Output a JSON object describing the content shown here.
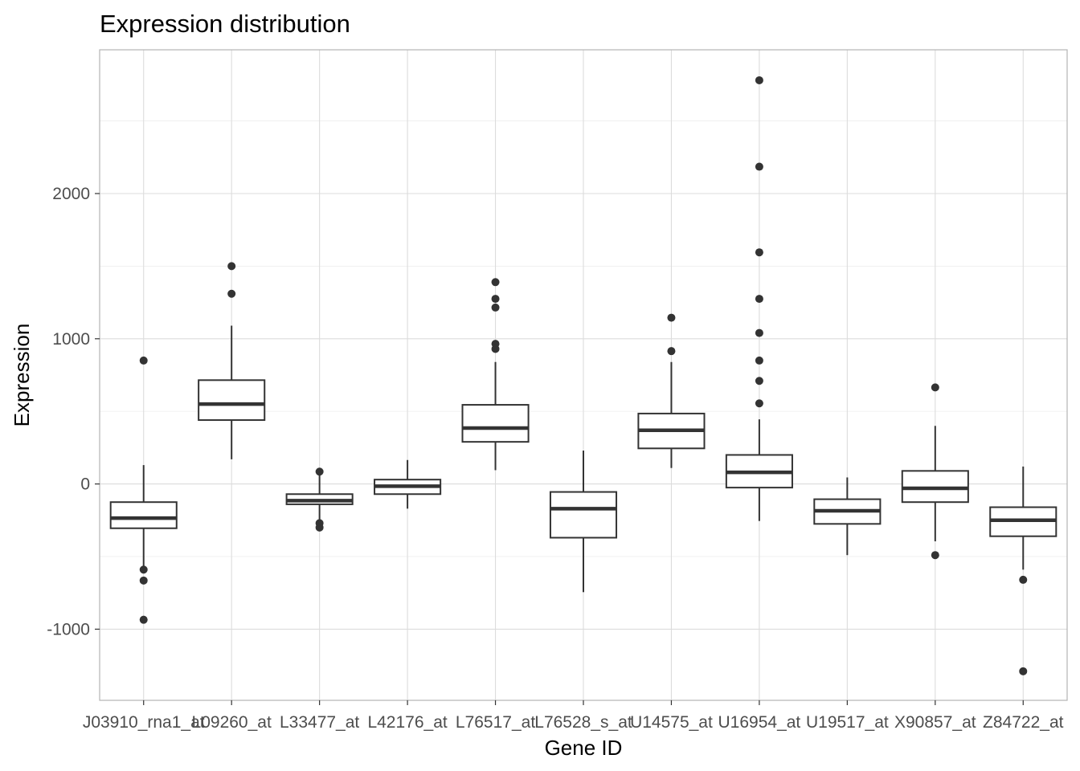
{
  "chart_data": {
    "type": "boxplot",
    "title": "Expression distribution",
    "xlabel": "Gene ID",
    "ylabel": "Expression",
    "ylim": [
      -1490,
      2990
    ],
    "yticks": [
      -1000,
      0,
      1000,
      2000
    ],
    "grid": true,
    "legend": "none",
    "colors": {
      "box_stroke": "#333333",
      "box_fill": "#ffffff",
      "grid": "#dcdcdc",
      "panel_border": "#b3b3b3"
    },
    "categories": [
      "J03910_rna1_at",
      "L09260_at",
      "L33477_at",
      "L42176_at",
      "L76517_at",
      "L76528_s_at",
      "U14575_at",
      "U16954_at",
      "U19517_at",
      "X90857_at",
      "Z84722_at"
    ],
    "boxes": [
      {
        "q1": -305,
        "median": -235,
        "q3": -125,
        "whisker_low": -590,
        "whisker_high": 130,
        "outliers": [
          850,
          -590,
          -665,
          -935
        ]
      },
      {
        "q1": 440,
        "median": 550,
        "q3": 715,
        "whisker_low": 170,
        "whisker_high": 1090,
        "outliers": [
          1500,
          1310
        ]
      },
      {
        "q1": -140,
        "median": -115,
        "q3": -70,
        "whisker_low": -265,
        "whisker_high": 85,
        "outliers": [
          85,
          -270,
          -300
        ]
      },
      {
        "q1": -70,
        "median": -15,
        "q3": 30,
        "whisker_low": -170,
        "whisker_high": 165,
        "outliers": []
      },
      {
        "q1": 290,
        "median": 385,
        "q3": 545,
        "whisker_low": 95,
        "whisker_high": 840,
        "outliers": [
          1390,
          1275,
          1215,
          965,
          930
        ]
      },
      {
        "q1": -370,
        "median": -170,
        "q3": -55,
        "whisker_low": -745,
        "whisker_high": 230,
        "outliers": []
      },
      {
        "q1": 245,
        "median": 370,
        "q3": 485,
        "whisker_low": 110,
        "whisker_high": 840,
        "outliers": [
          1145,
          915
        ]
      },
      {
        "q1": -25,
        "median": 80,
        "q3": 200,
        "whisker_low": -255,
        "whisker_high": 445,
        "outliers": [
          2780,
          2185,
          1595,
          1275,
          1040,
          850,
          710,
          555
        ]
      },
      {
        "q1": -275,
        "median": -185,
        "q3": -105,
        "whisker_low": -490,
        "whisker_high": 45,
        "outliers": []
      },
      {
        "q1": -125,
        "median": -30,
        "q3": 90,
        "whisker_low": -395,
        "whisker_high": 400,
        "outliers": [
          665,
          -490
        ]
      },
      {
        "q1": -360,
        "median": -250,
        "q3": -160,
        "whisker_low": -590,
        "whisker_high": 120,
        "outliers": [
          -660,
          -1290
        ]
      }
    ]
  }
}
